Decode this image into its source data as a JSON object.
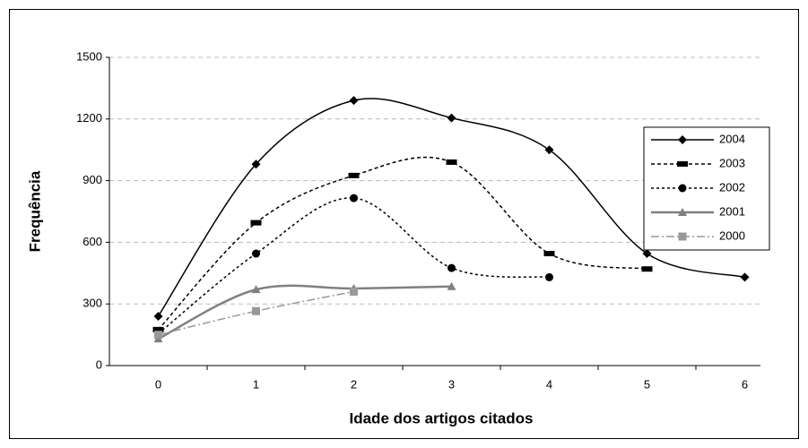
{
  "chart_data": {
    "type": "line",
    "xlabel": "Idade dos artigos citados",
    "ylabel": "Frequência",
    "categories": [
      "0",
      "1",
      "2",
      "3",
      "4",
      "5",
      "6"
    ],
    "ylim": [
      0,
      1500
    ],
    "yticks": [
      0,
      300,
      600,
      900,
      1200,
      1500
    ],
    "grid": true,
    "legend": "right",
    "series": [
      {
        "name": "2004",
        "color": "#000000",
        "dash": "",
        "marker": "diamond",
        "values": [
          240,
          980,
          1290,
          1205,
          1050,
          545,
          430
        ]
      },
      {
        "name": "2003",
        "color": "#000000",
        "dash": "4,3",
        "marker": "bar",
        "values": [
          175,
          695,
          925,
          990,
          545,
          470,
          null
        ]
      },
      {
        "name": "2002",
        "color": "#000000",
        "dash": "3,3",
        "marker": "circle",
        "values": [
          155,
          545,
          815,
          475,
          430,
          null,
          null
        ]
      },
      {
        "name": "2001",
        "color": "#808080",
        "dash": "",
        "marker": "triangle",
        "values": [
          130,
          370,
          375,
          385,
          null,
          null,
          null
        ]
      },
      {
        "name": "2000",
        "color": "#999999",
        "dash": "9,3,2,3",
        "marker": "square",
        "values": [
          150,
          265,
          360,
          null,
          null,
          null,
          null
        ]
      }
    ]
  }
}
